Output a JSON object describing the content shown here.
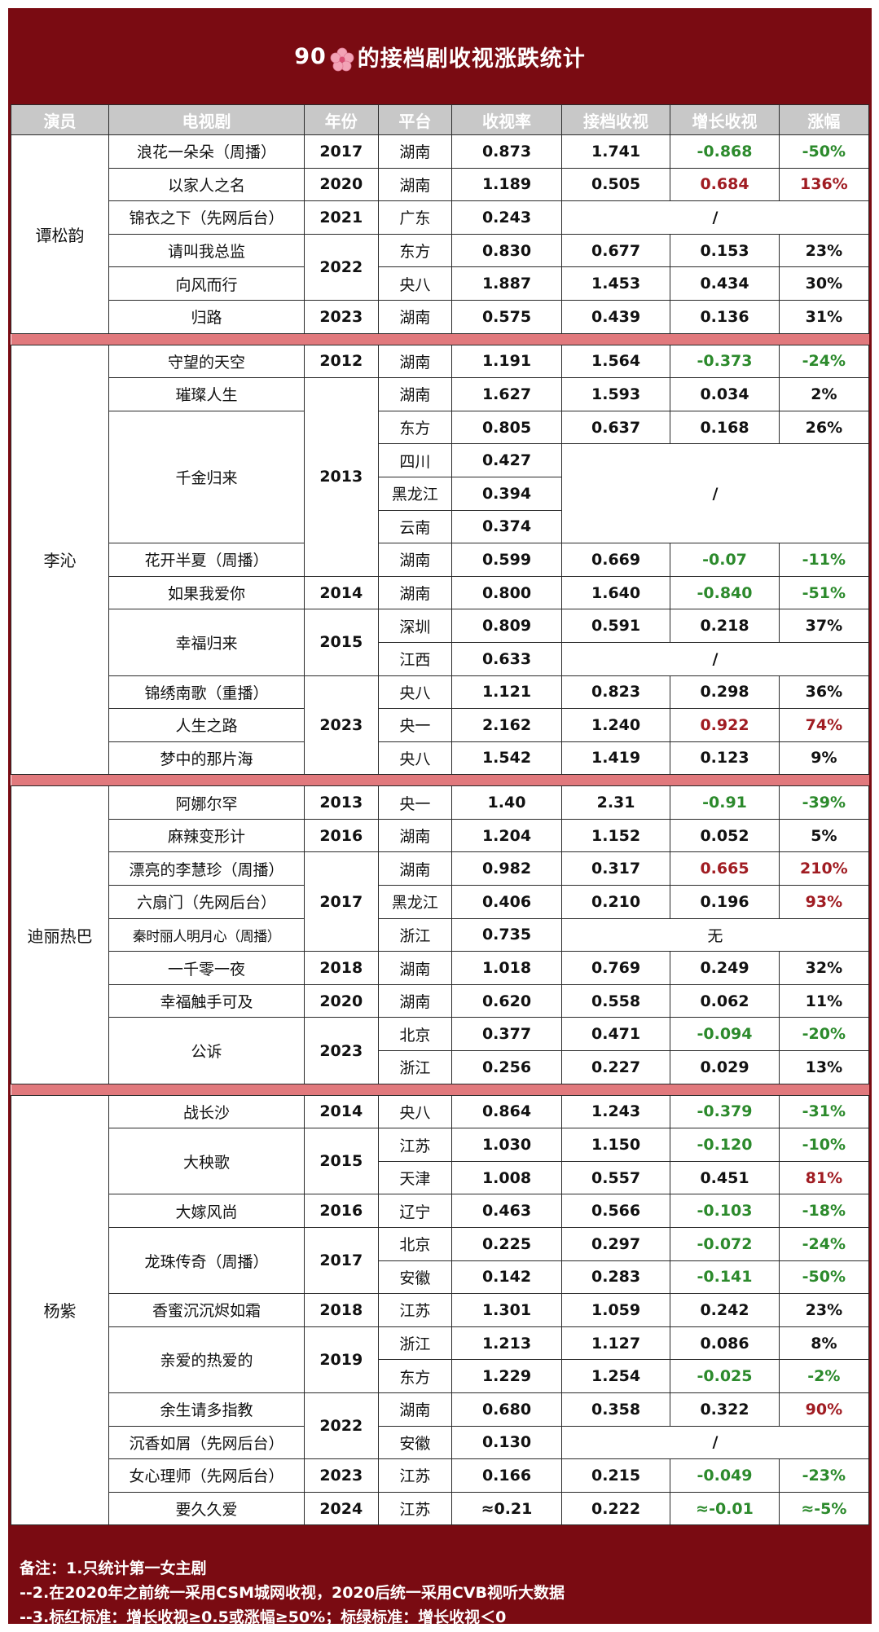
{
  "title": {
    "prefix": "90",
    "suffix": "的接档剧收视涨跌统计",
    "icon": "cherry-blossom-icon"
  },
  "colors": {
    "frame": "#7a0b12",
    "header_bg": "#c8c8c8",
    "separator": "#e1797d",
    "red_mark": "#a01c22",
    "green_mark": "#2c8a2c"
  },
  "headers": [
    "演员",
    "电视剧",
    "年份",
    "平台",
    "收视率",
    "接档收视",
    "增长收视",
    "涨幅"
  ],
  "actors": [
    "谭松韵",
    "李沁",
    "迪丽热巴",
    "杨紫"
  ],
  "years": [
    "2017",
    "2020",
    "2021",
    "2022",
    "2023",
    "2012",
    "2013",
    "2014",
    "2015",
    "2023",
    "2013",
    "2016",
    "2017",
    "2018",
    "2020",
    "2023",
    "2014",
    "2015",
    "2016",
    "2017",
    "2018",
    "2019",
    "2022",
    "2023",
    "2024"
  ],
  "rows": [
    {
      "drama": "浪花一朵朵（周播）",
      "platform": "湖南",
      "rating": "0.873",
      "next": "1.741",
      "growth": "-0.868",
      "pct": "-50%"
    },
    {
      "drama": "以家人之名",
      "platform": "湖南",
      "rating": "1.189",
      "next": "0.505",
      "growth": "0.684",
      "pct": "136%"
    },
    {
      "drama": "锦衣之下（先网后台）",
      "platform": "广东",
      "rating": "0.243",
      "merged": "/"
    },
    {
      "drama": "请叫我总监",
      "platform": "东方",
      "rating": "0.830",
      "next": "0.677",
      "growth": "0.153",
      "pct": "23%"
    },
    {
      "drama": "向风而行",
      "platform": "央八",
      "rating": "1.887",
      "next": "1.453",
      "growth": "0.434",
      "pct": "30%"
    },
    {
      "drama": "归路",
      "platform": "湖南",
      "rating": "0.575",
      "next": "0.439",
      "growth": "0.136",
      "pct": "31%"
    },
    {
      "drama": "守望的天空",
      "platform": "湖南",
      "rating": "1.191",
      "next": "1.564",
      "growth": "-0.373",
      "pct": "-24%"
    },
    {
      "drama": "璀璨人生",
      "platform": "湖南",
      "rating": "1.627",
      "next": "1.593",
      "growth": "0.034",
      "pct": "2%"
    },
    {
      "drama": "千金归来",
      "platform": "东方",
      "rating": "0.805",
      "next": "0.637",
      "growth": "0.168",
      "pct": "26%"
    },
    {
      "platform": "四川",
      "rating": "0.427",
      "merged": "/"
    },
    {
      "platform": "黑龙江",
      "rating": "0.394"
    },
    {
      "platform": "云南",
      "rating": "0.374"
    },
    {
      "drama": "花开半夏（周播）",
      "platform": "湖南",
      "rating": "0.599",
      "next": "0.669",
      "growth": "-0.07",
      "pct": "-11%"
    },
    {
      "drama": "如果我爱你",
      "platform": "湖南",
      "rating": "0.800",
      "next": "1.640",
      "growth": "-0.840",
      "pct": "-51%"
    },
    {
      "drama": "幸福归来",
      "platform": "深圳",
      "rating": "0.809",
      "next": "0.591",
      "growth": "0.218",
      "pct": "37%"
    },
    {
      "platform": "江西",
      "rating": "0.633",
      "merged": "/"
    },
    {
      "drama": "锦绣南歌（重播）",
      "platform": "央八",
      "rating": "1.121",
      "next": "0.823",
      "growth": "0.298",
      "pct": "36%"
    },
    {
      "drama": "人生之路",
      "platform": "央一",
      "rating": "2.162",
      "next": "1.240",
      "growth": "0.922",
      "pct": "74%"
    },
    {
      "drama": "梦中的那片海",
      "platform": "央八",
      "rating": "1.542",
      "next": "1.419",
      "growth": "0.123",
      "pct": "9%"
    },
    {
      "drama": "阿娜尔罕",
      "platform": "央一",
      "rating": "1.40",
      "next": "2.31",
      "growth": "-0.91",
      "pct": "-39%"
    },
    {
      "drama": "麻辣变形计",
      "platform": "湖南",
      "rating": "1.204",
      "next": "1.152",
      "growth": "0.052",
      "pct": "5%"
    },
    {
      "drama": "漂亮的李慧珍（周播）",
      "platform": "湖南",
      "rating": "0.982",
      "next": "0.317",
      "growth": "0.665",
      "pct": "210%"
    },
    {
      "drama": "六扇门（先网后台）",
      "platform": "黑龙江",
      "rating": "0.406",
      "next": "0.210",
      "growth": "0.196",
      "pct": "93%"
    },
    {
      "drama": "秦时丽人明月心（周播）",
      "platform": "浙江",
      "rating": "0.735",
      "merged": "无"
    },
    {
      "drama": "一千零一夜",
      "platform": "湖南",
      "rating": "1.018",
      "next": "0.769",
      "growth": "0.249",
      "pct": "32%"
    },
    {
      "drama": "幸福触手可及",
      "platform": "湖南",
      "rating": "0.620",
      "next": "0.558",
      "growth": "0.062",
      "pct": "11%"
    },
    {
      "drama": "公诉",
      "platform": "北京",
      "rating": "0.377",
      "next": "0.471",
      "growth": "-0.094",
      "pct": "-20%"
    },
    {
      "platform": "浙江",
      "rating": "0.256",
      "next": "0.227",
      "growth": "0.029",
      "pct": "13%"
    },
    {
      "drama": "战长沙",
      "platform": "央八",
      "rating": "0.864",
      "next": "1.243",
      "growth": "-0.379",
      "pct": "-31%"
    },
    {
      "drama": "大秧歌",
      "platform": "江苏",
      "rating": "1.030",
      "next": "1.150",
      "growth": "-0.120",
      "pct": "-10%"
    },
    {
      "platform": "天津",
      "rating": "1.008",
      "next": "0.557",
      "growth": "0.451",
      "pct": "81%"
    },
    {
      "drama": "大嫁风尚",
      "platform": "辽宁",
      "rating": "0.463",
      "next": "0.566",
      "growth": "-0.103",
      "pct": "-18%"
    },
    {
      "drama": "龙珠传奇（周播）",
      "platform": "北京",
      "rating": "0.225",
      "next": "0.297",
      "growth": "-0.072",
      "pct": "-24%"
    },
    {
      "platform": "安徽",
      "rating": "0.142",
      "next": "0.283",
      "growth": "-0.141",
      "pct": "-50%"
    },
    {
      "drama": "香蜜沉沉烬如霜",
      "platform": "江苏",
      "rating": "1.301",
      "next": "1.059",
      "growth": "0.242",
      "pct": "23%"
    },
    {
      "drama": "亲爱的热爱的",
      "platform": "浙江",
      "rating": "1.213",
      "next": "1.127",
      "growth": "0.086",
      "pct": "8%"
    },
    {
      "platform": "东方",
      "rating": "1.229",
      "next": "1.254",
      "growth": "-0.025",
      "pct": "-2%"
    },
    {
      "drama": "余生请多指教",
      "platform": "湖南",
      "rating": "0.680",
      "next": "0.358",
      "growth": "0.322",
      "pct": "90%"
    },
    {
      "drama": "沉香如屑（先网后台）",
      "platform": "安徽",
      "rating": "0.130",
      "merged": "/"
    },
    {
      "drama": "女心理师（先网后台）",
      "platform": "江苏",
      "rating": "0.166",
      "next": "0.215",
      "growth": "-0.049",
      "pct": "-23%"
    },
    {
      "drama": "要久久爱",
      "platform": "江苏",
      "rating": "≈0.21",
      "next": "0.222",
      "growth": "≈-0.01",
      "pct": "≈-5%"
    }
  ],
  "notes": [
    "备注：1.只统计第一女主剧",
    "--2.在2020年之前统一采用CSM城网收视，2020后统一采用CVB视听大数据",
    "--3.标红标准：增长收视≥0.5或涨幅≥50%；标绿标准：增长收视＜0"
  ]
}
